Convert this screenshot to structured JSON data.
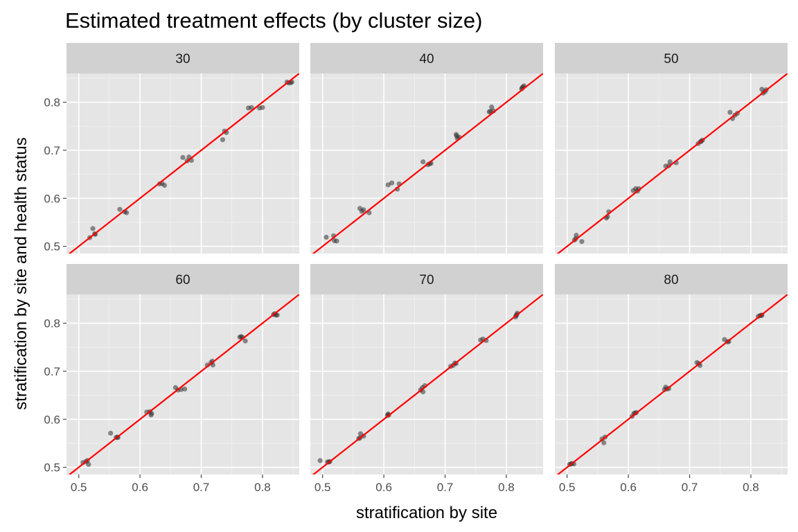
{
  "chart_data": {
    "type": "scatter",
    "title": "Estimated treatment effects (by cluster size)",
    "xlabel": "stratification by site",
    "ylabel": "stratification by site and health status",
    "xlim": [
      0.48,
      0.86
    ],
    "ylim": [
      0.485,
      0.86
    ],
    "x_ticks": [
      "0.5",
      "0.6",
      "0.7",
      "0.8"
    ],
    "y_ticks": [
      "0.5",
      "0.6",
      "0.7",
      "0.8"
    ],
    "reference_line": {
      "slope": 1,
      "intercept": 0,
      "color": "#ff0000"
    },
    "grid": true,
    "point_color": "#333333",
    "panel_background": "#e5e5e5",
    "strip_background": "#d1d1d1",
    "panels": [
      {
        "label": "30",
        "points": [
          [
            0.518,
            0.518
          ],
          [
            0.523,
            0.537
          ],
          [
            0.527,
            0.525
          ],
          [
            0.526,
            0.526
          ],
          [
            0.567,
            0.577
          ],
          [
            0.575,
            0.572
          ],
          [
            0.578,
            0.57
          ],
          [
            0.632,
            0.63
          ],
          [
            0.636,
            0.631
          ],
          [
            0.64,
            0.627
          ],
          [
            0.67,
            0.685
          ],
          [
            0.677,
            0.678
          ],
          [
            0.68,
            0.686
          ],
          [
            0.684,
            0.679
          ],
          [
            0.735,
            0.722
          ],
          [
            0.738,
            0.74
          ],
          [
            0.741,
            0.737
          ],
          [
            0.777,
            0.788
          ],
          [
            0.782,
            0.789
          ],
          [
            0.795,
            0.788
          ],
          [
            0.8,
            0.789
          ],
          [
            0.84,
            0.842
          ],
          [
            0.843,
            0.84
          ],
          [
            0.846,
            0.841
          ],
          [
            0.848,
            0.842
          ]
        ]
      },
      {
        "label": "40",
        "points": [
          [
            0.506,
            0.519
          ],
          [
            0.518,
            0.522
          ],
          [
            0.519,
            0.512
          ],
          [
            0.523,
            0.511
          ],
          [
            0.561,
            0.579
          ],
          [
            0.564,
            0.573
          ],
          [
            0.567,
            0.576
          ],
          [
            0.576,
            0.57
          ],
          [
            0.607,
            0.628
          ],
          [
            0.613,
            0.632
          ],
          [
            0.622,
            0.619
          ],
          [
            0.625,
            0.63
          ],
          [
            0.664,
            0.676
          ],
          [
            0.672,
            0.67
          ],
          [
            0.675,
            0.672
          ],
          [
            0.677,
            0.673
          ],
          [
            0.718,
            0.733
          ],
          [
            0.72,
            0.725
          ],
          [
            0.723,
            0.727
          ],
          [
            0.719,
            0.73
          ],
          [
            0.772,
            0.78
          ],
          [
            0.774,
            0.781
          ],
          [
            0.776,
            0.79
          ],
          [
            0.779,
            0.782
          ],
          [
            0.825,
            0.828
          ],
          [
            0.827,
            0.832
          ],
          [
            0.829,
            0.834
          ],
          [
            0.826,
            0.83
          ]
        ]
      },
      {
        "label": "50",
        "points": [
          [
            0.512,
            0.513
          ],
          [
            0.514,
            0.516
          ],
          [
            0.515,
            0.523
          ],
          [
            0.524,
            0.51
          ],
          [
            0.564,
            0.559
          ],
          [
            0.566,
            0.562
          ],
          [
            0.568,
            0.572
          ],
          [
            0.608,
            0.616
          ],
          [
            0.612,
            0.62
          ],
          [
            0.615,
            0.615
          ],
          [
            0.617,
            0.62
          ],
          [
            0.661,
            0.667
          ],
          [
            0.666,
            0.668
          ],
          [
            0.668,
            0.676
          ],
          [
            0.678,
            0.674
          ],
          [
            0.714,
            0.714
          ],
          [
            0.718,
            0.718
          ],
          [
            0.721,
            0.721
          ],
          [
            0.719,
            0.719
          ],
          [
            0.766,
            0.779
          ],
          [
            0.77,
            0.766
          ],
          [
            0.774,
            0.773
          ],
          [
            0.778,
            0.777
          ],
          [
            0.818,
            0.827
          ],
          [
            0.82,
            0.819
          ],
          [
            0.823,
            0.822
          ],
          [
            0.825,
            0.826
          ]
        ]
      },
      {
        "label": "60",
        "points": [
          [
            0.507,
            0.51
          ],
          [
            0.512,
            0.512
          ],
          [
            0.514,
            0.514
          ],
          [
            0.516,
            0.506
          ],
          [
            0.552,
            0.571
          ],
          [
            0.561,
            0.562
          ],
          [
            0.563,
            0.563
          ],
          [
            0.564,
            0.562
          ],
          [
            0.611,
            0.615
          ],
          [
            0.616,
            0.616
          ],
          [
            0.618,
            0.609
          ],
          [
            0.619,
            0.612
          ],
          [
            0.658,
            0.666
          ],
          [
            0.662,
            0.661
          ],
          [
            0.667,
            0.662
          ],
          [
            0.673,
            0.663
          ],
          [
            0.71,
            0.713
          ],
          [
            0.716,
            0.718
          ],
          [
            0.718,
            0.721
          ],
          [
            0.719,
            0.713
          ],
          [
            0.763,
            0.771
          ],
          [
            0.765,
            0.772
          ],
          [
            0.767,
            0.771
          ],
          [
            0.772,
            0.763
          ],
          [
            0.818,
            0.818
          ],
          [
            0.82,
            0.82
          ],
          [
            0.822,
            0.817
          ],
          [
            0.824,
            0.817
          ]
        ]
      },
      {
        "label": "70",
        "points": [
          [
            0.496,
            0.514
          ],
          [
            0.508,
            0.511
          ],
          [
            0.51,
            0.511
          ],
          [
            0.512,
            0.512
          ],
          [
            0.559,
            0.56
          ],
          [
            0.562,
            0.57
          ],
          [
            0.567,
            0.565
          ],
          [
            0.561,
            0.561
          ],
          [
            0.606,
            0.608
          ],
          [
            0.607,
            0.611
          ],
          [
            0.608,
            0.609
          ],
          [
            0.66,
            0.661
          ],
          [
            0.663,
            0.666
          ],
          [
            0.664,
            0.657
          ],
          [
            0.667,
            0.67
          ],
          [
            0.709,
            0.71
          ],
          [
            0.713,
            0.712
          ],
          [
            0.716,
            0.717
          ],
          [
            0.718,
            0.716
          ],
          [
            0.758,
            0.765
          ],
          [
            0.762,
            0.767
          ],
          [
            0.767,
            0.764
          ],
          [
            0.815,
            0.813
          ],
          [
            0.816,
            0.816
          ],
          [
            0.818,
            0.821
          ],
          [
            0.817,
            0.818
          ]
        ]
      },
      {
        "label": "80",
        "points": [
          [
            0.504,
            0.506
          ],
          [
            0.506,
            0.507
          ],
          [
            0.508,
            0.508
          ],
          [
            0.511,
            0.507
          ],
          [
            0.557,
            0.559
          ],
          [
            0.56,
            0.551
          ],
          [
            0.562,
            0.563
          ],
          [
            0.606,
            0.606
          ],
          [
            0.609,
            0.612
          ],
          [
            0.611,
            0.613
          ],
          [
            0.613,
            0.614
          ],
          [
            0.659,
            0.662
          ],
          [
            0.661,
            0.667
          ],
          [
            0.663,
            0.663
          ],
          [
            0.666,
            0.664
          ],
          [
            0.712,
            0.718
          ],
          [
            0.715,
            0.716
          ],
          [
            0.717,
            0.712
          ],
          [
            0.757,
            0.766
          ],
          [
            0.762,
            0.761
          ],
          [
            0.764,
            0.762
          ],
          [
            0.812,
            0.814
          ],
          [
            0.815,
            0.816
          ],
          [
            0.817,
            0.816
          ],
          [
            0.818,
            0.817
          ]
        ]
      }
    ]
  }
}
